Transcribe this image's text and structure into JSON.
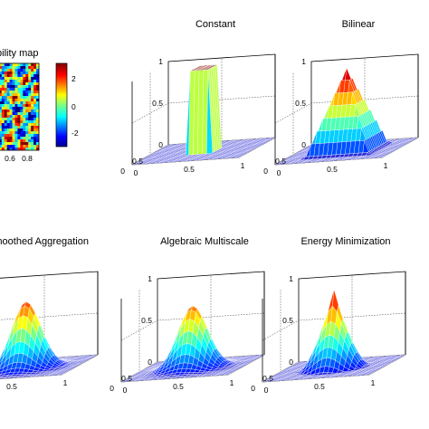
{
  "chart_data": [
    {
      "type": "heatmap",
      "title": "Permeability map",
      "x_ticks": [
        "0.6",
        "0.8"
      ],
      "colorbar_ticks": [
        "2",
        "0",
        "-2"
      ],
      "colormap": "jet"
    },
    {
      "type": "surface",
      "title": "Constant",
      "z_ticks": [
        "1",
        "0.5",
        "0"
      ],
      "x_ticks": [
        "0",
        "0.5",
        "1"
      ],
      "y_ticks": [
        "0",
        "0.5"
      ],
      "zlim": [
        0,
        1
      ],
      "peak": 1.0,
      "shape": "block"
    },
    {
      "type": "surface",
      "title": "Bilinear",
      "z_ticks": [
        "1",
        "0.5",
        "0"
      ],
      "x_ticks": [
        "0",
        "0.5",
        "1"
      ],
      "y_ticks": [
        "0",
        "0.5"
      ],
      "zlim": [
        0,
        1
      ],
      "peak": 1.0,
      "shape": "pyramid"
    },
    {
      "type": "surface",
      "title": "Smoothed Aggregation",
      "z_ticks": [],
      "x_ticks": [
        "0",
        "0.5",
        "1"
      ],
      "y_ticks": [
        "0",
        "0.5"
      ],
      "zlim": [
        0,
        1
      ],
      "peak": 0.8,
      "shape": "bump"
    },
    {
      "type": "surface",
      "title": "Algebraic Multiscale",
      "z_ticks": [
        "1",
        "0.5",
        "0"
      ],
      "x_ticks": [
        "0",
        "0.5",
        "1"
      ],
      "y_ticks": [
        "0",
        "0.5"
      ],
      "zlim": [
        0,
        1
      ],
      "peak": 0.75,
      "shape": "bump"
    },
    {
      "type": "surface",
      "title": "Energy Minimization",
      "z_ticks": [
        "1",
        "0.5",
        "0"
      ],
      "x_ticks": [
        "0",
        "0.5",
        "1"
      ],
      "y_ticks": [
        "0",
        "0.5"
      ],
      "zlim": [
        0,
        1
      ],
      "peak": 0.95,
      "shape": "spike"
    }
  ]
}
